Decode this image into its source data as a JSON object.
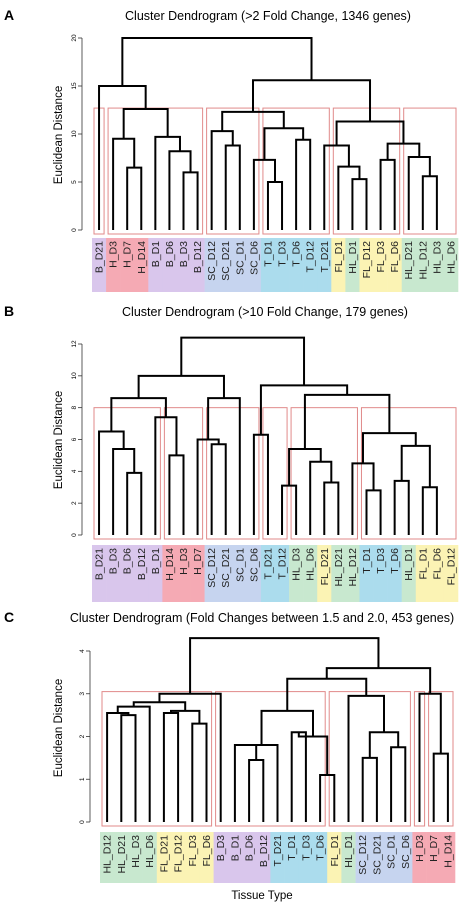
{
  "colors": {
    "B": "#d9c6ec",
    "H": "#f5aab4",
    "SC": "#c6d4ef",
    "T": "#abdced",
    "FL": "#fbf3b4",
    "HL": "#c8e8cf",
    "box": "#e08a8a"
  },
  "chart_data": [
    {
      "type": "dendrogram",
      "panel": "A",
      "title": "Cluster Dendrogram (>2 Fold Change, 1346 genes)",
      "ylabel": "Euclidean Distance",
      "xlabel": "",
      "ylim": [
        0,
        20
      ],
      "yticks": [
        "0",
        "5",
        "10",
        "15",
        "20"
      ],
      "leaves": [
        "B_D21",
        "H_D3",
        "H_D7",
        "H_D14",
        "B_D1",
        "B_D6",
        "B_D3",
        "B_D12",
        "SC_D12",
        "SC_D21",
        "SC_D1",
        "SC_D6",
        "T_D1",
        "T_D3",
        "T_D6",
        "T_D12",
        "T_D21",
        "FL_D1",
        "HL_D1",
        "FL_D12",
        "FL_D3",
        "FL_D6",
        "HL_D21",
        "HL_D12",
        "HL_D3",
        "HL_D6"
      ],
      "groups": [
        "B",
        "H",
        "H",
        "H",
        "B",
        "B",
        "B",
        "B",
        "SC",
        "SC",
        "SC",
        "SC",
        "T",
        "T",
        "T",
        "T",
        "T",
        "FL",
        "HL",
        "FL",
        "FL",
        "FL",
        "HL",
        "HL",
        "HL",
        "HL"
      ],
      "merges": [
        [
          4,
          5,
          9.5
        ],
        [
          14,
          15,
          9.5
        ],
        [
          7,
          8,
          8
        ],
        [
          6,
          17,
          9.5
        ],
        [
          3,
          18,
          12.5
        ],
        [
          2,
          19,
          15
        ],
        [
          9,
          10,
          8.3
        ],
        [
          11,
          12,
          9
        ],
        [
          21,
          22,
          10.3
        ],
        [
          13,
          14,
          7.3
        ],
        [
          15,
          16,
          5
        ],
        [
          24,
          25,
          7.3
        ],
        [
          17,
          26,
          10.7
        ],
        [
          23,
          27,
          12
        ],
        [
          27,
          28,
          6
        ],
        [
          20,
          21,
          6.5
        ],
        [
          30,
          31,
          8.8
        ],
        [
          29,
          32,
          9
        ],
        [
          23,
          24,
          7.3
        ],
        [
          25,
          26,
          5.6
        ],
        [
          34,
          35,
          7.5
        ],
        [
          33,
          36,
          9
        ],
        [
          -1,
          -2,
          0
        ],
        [
          -1,
          -2,
          0
        ],
        [
          -1,
          -2,
          0
        ]
      ],
      "boxes": [
        [
          0,
          1
        ],
        [
          1,
          8
        ],
        [
          8,
          12
        ],
        [
          12,
          17
        ],
        [
          17,
          22
        ],
        [
          22,
          26
        ]
      ]
    },
    {
      "type": "dendrogram",
      "panel": "B",
      "title": "Cluster Dendrogram (>10 Fold Change, 179 genes)",
      "ylabel": "Euclidean Distance",
      "xlabel": "",
      "ylim": [
        0,
        12
      ],
      "yticks": [
        "0",
        "2",
        "4",
        "6",
        "8",
        "10",
        "12"
      ],
      "leaves": [
        "B_D21",
        "B_D3",
        "B_D6",
        "B_D12",
        "B_D1",
        "H_D14",
        "H_D3",
        "H_D7",
        "SC_D12",
        "SC_D21",
        "SC_D1",
        "SC_D6",
        "T_D21",
        "T_D12",
        "HL_D3",
        "HL_D6",
        "FL_D21",
        "HL_D21",
        "HL_D12",
        "T_D1",
        "T_D3",
        "T_D6",
        "HL_D1",
        "FL_D1",
        "FL_D6",
        "FL_D12"
      ],
      "groups": [
        "B",
        "B",
        "B",
        "B",
        "B",
        "H",
        "H",
        "H",
        "SC",
        "SC",
        "SC",
        "SC",
        "T",
        "T",
        "HL",
        "HL",
        "FL",
        "HL",
        "HL",
        "T",
        "T",
        "T",
        "HL",
        "FL",
        "FL",
        "FL"
      ],
      "boxes": [
        [
          0,
          5
        ],
        [
          5,
          8
        ],
        [
          8,
          12
        ],
        [
          12,
          14
        ],
        [
          14,
          19
        ],
        [
          19,
          26
        ]
      ]
    },
    {
      "type": "dendrogram",
      "panel": "C",
      "title": "Cluster Dendrogram (Fold Changes between 1.5 and 2.0, 453 genes)",
      "ylabel": "Euclidean Distance",
      "xlabel": "Tissue Type",
      "ylim": [
        0,
        4
      ],
      "yticks": [
        "0",
        "1",
        "2",
        "3",
        "4"
      ],
      "leaves": [
        "HL_D12",
        "HL_D21",
        "HL_D3",
        "HL_D6",
        "FL_D21",
        "FL_D12",
        "FL_D3",
        "FL_D6",
        "B_D3",
        "B_D1",
        "B_D6",
        "B_D12",
        "T_D21",
        "T_D1",
        "T_D3",
        "T_D6",
        "FL_D1",
        "HL_D1",
        "SC_D12",
        "SC_D21",
        "SC_D1",
        "SC_D6",
        "H_D3",
        "H_D7",
        "H_D14"
      ],
      "groups": [
        "HL",
        "HL",
        "HL",
        "HL",
        "FL",
        "FL",
        "FL",
        "FL",
        "B",
        "B",
        "B",
        "B",
        "T",
        "T",
        "T",
        "T",
        "FL",
        "HL",
        "SC",
        "SC",
        "SC",
        "SC",
        "H",
        "H",
        "H"
      ],
      "boxes": [
        [
          0,
          8
        ],
        [
          8,
          16
        ],
        [
          16,
          22
        ],
        [
          22,
          23
        ],
        [
          23,
          25
        ]
      ]
    }
  ]
}
